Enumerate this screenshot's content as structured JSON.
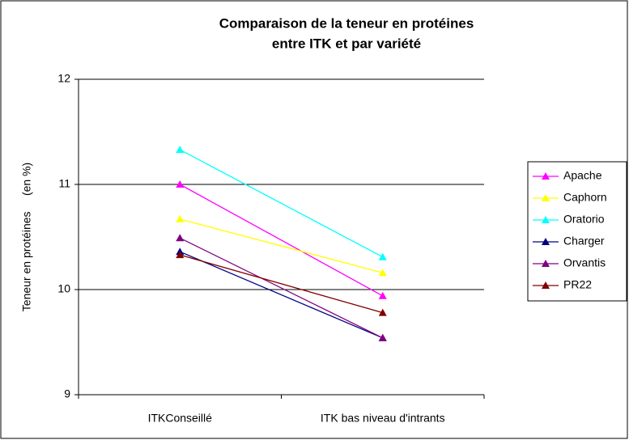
{
  "chart_data": {
    "type": "line",
    "title": [
      "Comparaison de la teneur en protéines",
      "entre ITK et par variété"
    ],
    "y_label": "Teneur en protéines     (en %)",
    "categories": [
      "ITKConseillé",
      "ITK bas niveau d'intrants"
    ],
    "series": [
      {
        "name": "Apache",
        "color": "#ff00ff",
        "values": [
          11.0,
          9.94
        ]
      },
      {
        "name": "Caphorn",
        "color": "#ffff00",
        "values": [
          10.67,
          10.16
        ]
      },
      {
        "name": "Oratorio",
        "color": "#00ffff",
        "values": [
          11.33,
          10.31
        ]
      },
      {
        "name": "Charger",
        "color": "#000080",
        "values": [
          10.36,
          9.54
        ]
      },
      {
        "name": "Orvantis",
        "color": "#800080",
        "values": [
          10.49,
          9.54
        ]
      },
      {
        "name": "PR22",
        "color": "#800000",
        "values": [
          10.33,
          9.78
        ]
      }
    ],
    "ylim": [
      9,
      12
    ],
    "yticks": [
      9,
      10,
      11,
      12
    ],
    "grid": true,
    "legend": "right"
  }
}
